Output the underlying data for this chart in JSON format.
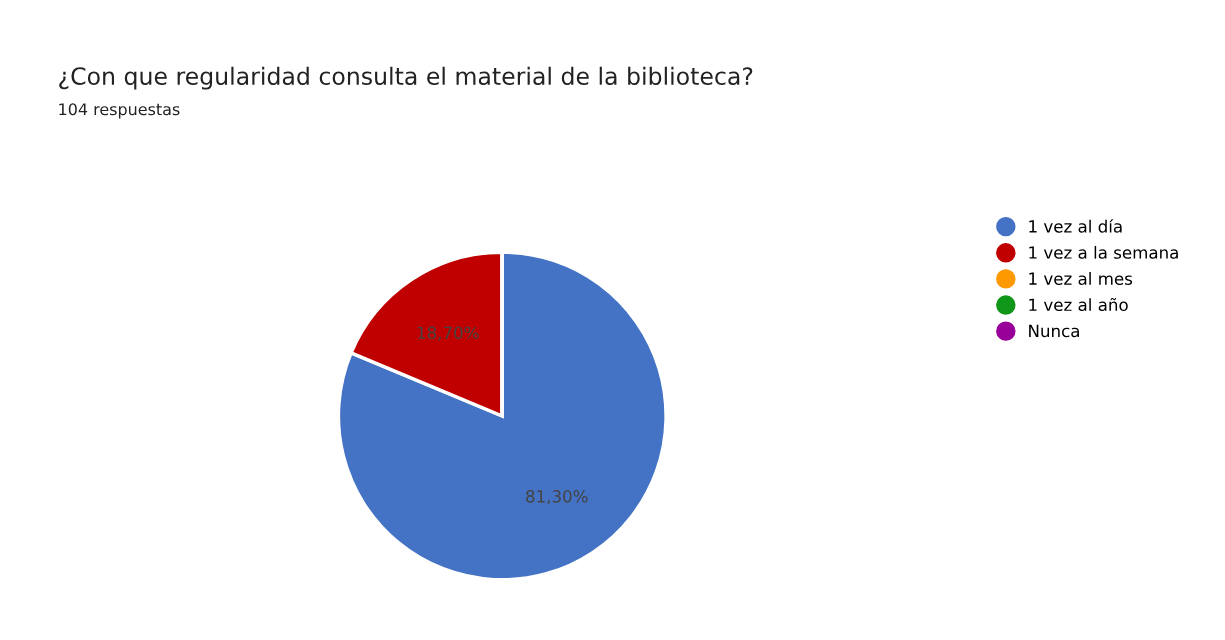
{
  "chart_data": {
    "type": "pie",
    "title": "¿Con que regularidad consulta el material de la biblioteca?",
    "subtitle": "104 respuestas",
    "categories": [
      "1 vez al día",
      "1 vez a la semana",
      "1 vez al mes",
      "1 vez al año",
      "Nunca"
    ],
    "values": [
      81.3,
      18.7,
      0,
      0,
      0
    ],
    "value_labels": [
      "81,30%",
      "18,70%",
      null,
      null,
      null
    ],
    "colors": [
      "#4472c4",
      "#c00000",
      "#ff9900",
      "#109618",
      "#990099"
    ],
    "legend": "top right"
  }
}
